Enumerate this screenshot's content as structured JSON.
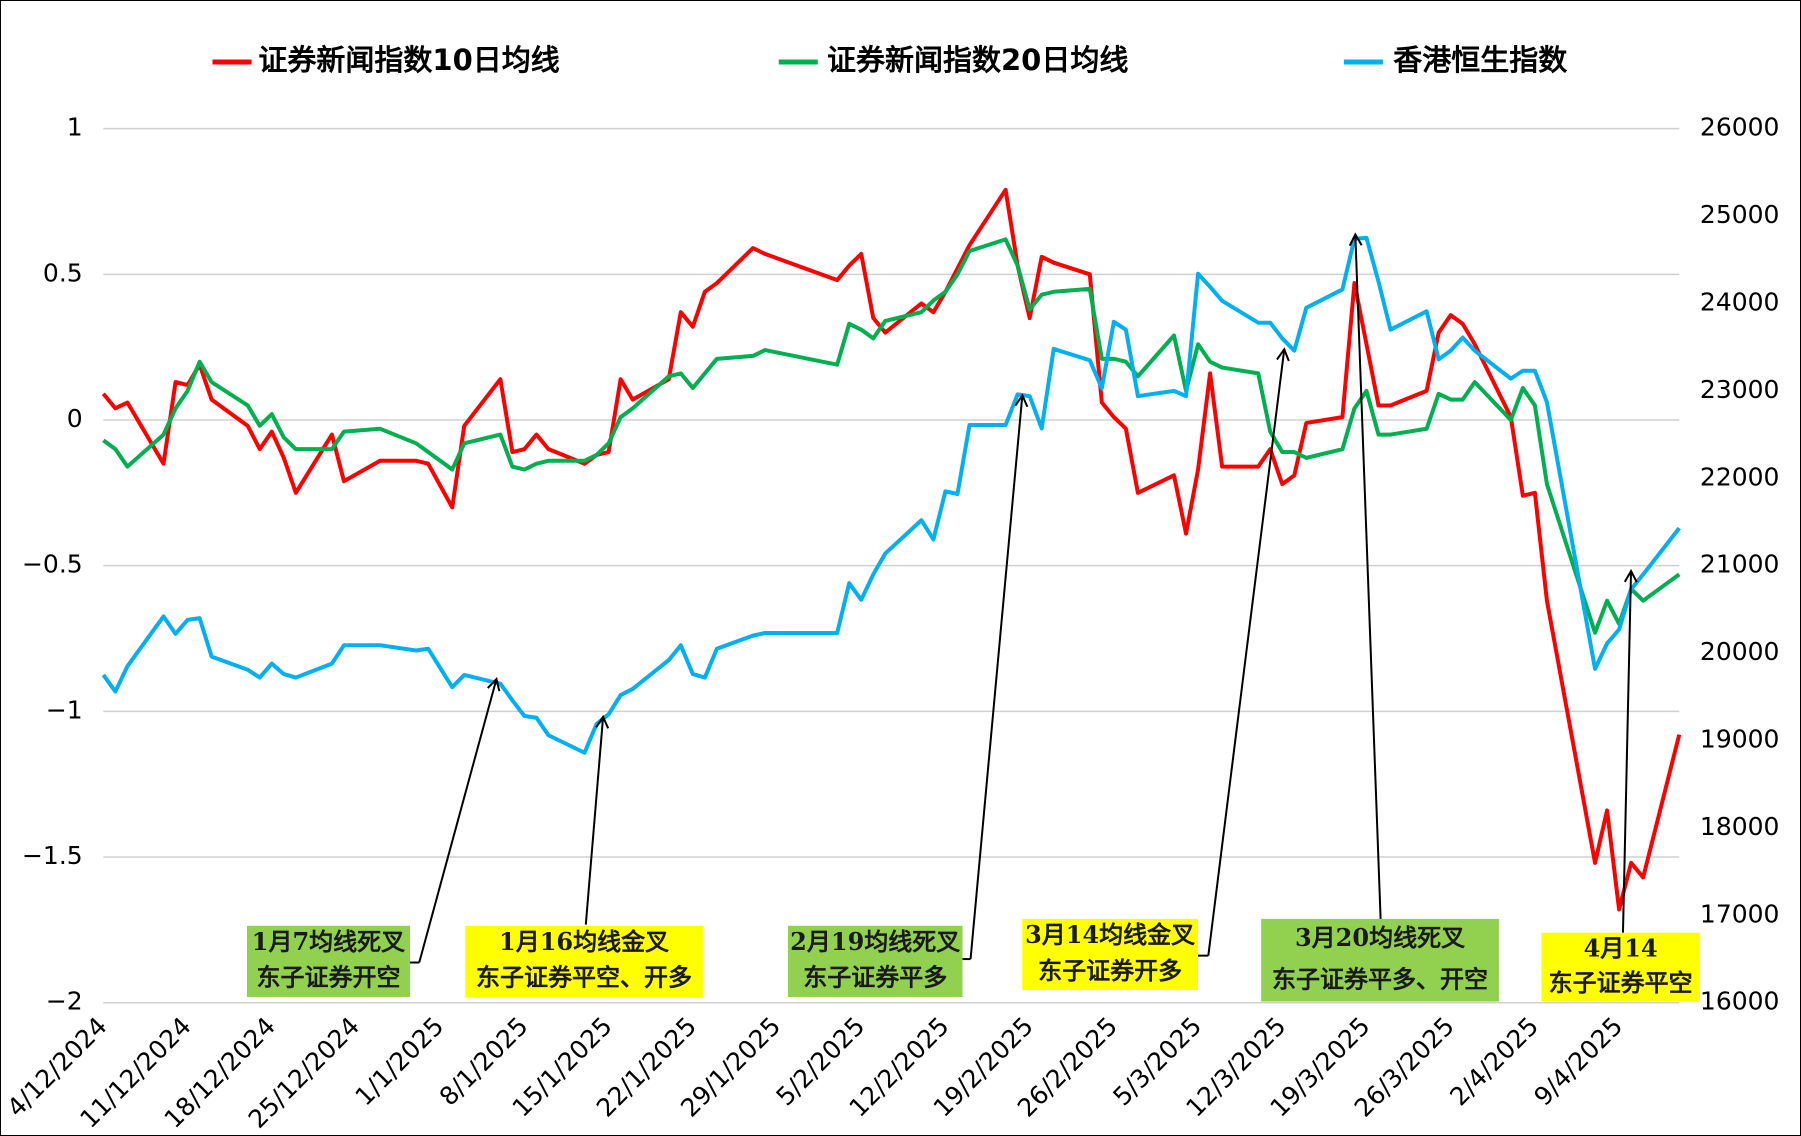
{
  "chart_data": {
    "type": "line",
    "x": [
      "4/12/2024",
      "5/12/2024",
      "6/12/2024",
      "9/12/2024",
      "10/12/2024",
      "11/12/2024",
      "12/12/2024",
      "13/12/2024",
      "16/12/2024",
      "17/12/2024",
      "18/12/2024",
      "19/12/2024",
      "20/12/2024",
      "23/12/2024",
      "24/12/2024",
      "27/12/2024",
      "30/12/2024",
      "31/12/2024",
      "2/1/2025",
      "3/1/2025",
      "6/1/2025",
      "7/1/2025",
      "8/1/2025",
      "9/1/2025",
      "10/1/2025",
      "13/1/2025",
      "14/1/2025",
      "15/1/2025",
      "16/1/2025",
      "17/1/2025",
      "20/1/2025",
      "21/1/2025",
      "22/1/2025",
      "23/1/2025",
      "24/1/2025",
      "27/1/2025",
      "28/1/2025",
      "3/2/2025",
      "4/2/2025",
      "5/2/2025",
      "6/2/2025",
      "7/2/2025",
      "10/2/2025",
      "11/2/2025",
      "12/2/2025",
      "13/2/2025",
      "14/2/2025",
      "17/2/2025",
      "18/2/2025",
      "19/2/2025",
      "20/2/2025",
      "21/2/2025",
      "24/2/2025",
      "25/2/2025",
      "26/2/2025",
      "27/2/2025",
      "28/2/2025",
      "3/3/2025",
      "4/3/2025",
      "5/3/2025",
      "6/3/2025",
      "7/3/2025",
      "10/3/2025",
      "11/3/2025",
      "12/3/2025",
      "13/3/2025",
      "14/3/2025",
      "17/3/2025",
      "18/3/2025",
      "19/3/2025",
      "20/3/2025",
      "21/3/2025",
      "24/3/2025",
      "25/3/2025",
      "26/3/2025",
      "27/3/2025",
      "28/3/2025",
      "31/3/2025",
      "1/4/2025",
      "2/4/2025",
      "3/4/2025",
      "7/4/2025",
      "8/4/2025",
      "9/4/2025",
      "10/4/2025",
      "11/4/2025",
      "14/4/2025"
    ],
    "series": [
      {
        "name": "证券新闻指数10日均线",
        "color": "#ff0000",
        "axis": "y",
        "values": [
          0.09,
          0.04,
          0.06,
          -0.15,
          0.13,
          0.12,
          0.19,
          0.07,
          -0.02,
          -0.1,
          -0.04,
          -0.13,
          -0.25,
          -0.05,
          -0.21,
          -0.14,
          -0.14,
          -0.15,
          -0.3,
          -0.02,
          0.14,
          -0.11,
          -0.1,
          -0.05,
          -0.1,
          -0.15,
          -0.12,
          -0.11,
          0.14,
          0.07,
          0.14,
          0.37,
          0.32,
          0.44,
          0.47,
          0.59,
          0.57,
          0.48,
          0.53,
          0.57,
          0.35,
          0.3,
          0.4,
          0.37,
          0.44,
          0.52,
          0.6,
          0.79,
          0.53,
          0.35,
          0.56,
          0.54,
          0.5,
          0.06,
          0.01,
          -0.03,
          -0.25,
          -0.19,
          -0.39,
          -0.17,
          0.16,
          -0.16,
          -0.16,
          -0.1,
          -0.22,
          -0.19,
          -0.01,
          0.01,
          0.47,
          0.26,
          0.05,
          0.05,
          0.1,
          0.3,
          0.36,
          0.33,
          0.26,
          0.01,
          -0.26,
          -0.25,
          -0.62,
          -1.52,
          -1.34,
          -1.68,
          -1.52,
          -1.57,
          -1.08
        ]
      },
      {
        "name": "证券新闻指数20日均线",
        "color": "#00b050",
        "axis": "y",
        "values": [
          -0.07,
          -0.1,
          -0.16,
          -0.05,
          0.04,
          0.1,
          0.2,
          0.13,
          0.05,
          -0.02,
          0.02,
          -0.06,
          -0.1,
          -0.1,
          -0.04,
          -0.03,
          -0.08,
          -0.11,
          -0.17,
          -0.08,
          -0.05,
          -0.16,
          -0.17,
          -0.15,
          -0.14,
          -0.14,
          -0.12,
          -0.08,
          0.01,
          0.04,
          0.15,
          0.16,
          0.11,
          0.16,
          0.21,
          0.22,
          0.24,
          0.19,
          0.33,
          0.31,
          0.28,
          0.34,
          0.37,
          0.41,
          0.44,
          0.5,
          0.58,
          0.62,
          0.53,
          0.38,
          0.43,
          0.44,
          0.45,
          0.21,
          0.21,
          0.2,
          0.15,
          0.29,
          0.1,
          0.26,
          0.2,
          0.18,
          0.16,
          -0.04,
          -0.11,
          -0.11,
          -0.13,
          -0.1,
          0.04,
          0.1,
          -0.05,
          -0.05,
          -0.03,
          0.09,
          0.07,
          0.07,
          0.13,
          0.0,
          0.11,
          0.05,
          -0.22,
          -0.73,
          -0.62,
          -0.7,
          -0.58,
          -0.62,
          -0.53
        ]
      },
      {
        "name": "香港恒生指数",
        "color": "#00b0f0",
        "axis": "y2",
        "values": [
          19750,
          19560,
          19850,
          20420,
          20220,
          20380,
          20400,
          19960,
          19810,
          19720,
          19880,
          19760,
          19720,
          19880,
          20090,
          20090,
          20030,
          20050,
          19610,
          19750,
          19650,
          19460,
          19280,
          19260,
          19060,
          18860,
          19190,
          19300,
          19520,
          19590,
          19920,
          20090,
          19760,
          19720,
          20050,
          20200,
          20230,
          20230,
          20800,
          20610,
          20900,
          21140,
          21520,
          21300,
          21850,
          21820,
          22610,
          22610,
          22960,
          22940,
          22570,
          23480,
          23350,
          23030,
          23790,
          23700,
          22940,
          23000,
          22940,
          24340,
          24190,
          24030,
          23780,
          23780,
          23600,
          23460,
          23950,
          24160,
          24740,
          24750,
          24250,
          23700,
          23910,
          23360,
          23460,
          23610,
          23460,
          23140,
          23230,
          23230,
          22870,
          19820,
          20110,
          20270,
          20730,
          20900,
          21430
        ]
      }
    ],
    "xlim": [
      "4/12/2024",
      "14/4/2025"
    ],
    "xticks": [
      "4/12/2024",
      "11/12/2024",
      "18/12/2024",
      "25/12/2024",
      "1/1/2025",
      "8/1/2025",
      "15/1/2025",
      "22/1/2025",
      "29/1/2025",
      "5/2/2025",
      "12/2/2025",
      "19/2/2025",
      "26/2/2025",
      "5/3/2025",
      "12/3/2025",
      "19/3/2025",
      "26/3/2025",
      "2/4/2025",
      "9/4/2025"
    ],
    "ylim": [
      -2,
      1
    ],
    "yticks": [
      {
        "value": -2,
        "label": "−2"
      },
      {
        "value": -1.5,
        "label": "−1.5"
      },
      {
        "value": -1,
        "label": "−1"
      },
      {
        "value": -0.5,
        "label": "−0.5"
      },
      0,
      0.5,
      1
    ],
    "y2lim": [
      16000,
      26000
    ],
    "y2ticks": [
      16000,
      17000,
      18000,
      19000,
      20000,
      21000,
      22000,
      23000,
      24000,
      25000,
      26000
    ],
    "grid": true,
    "legend": "top",
    "annotations": [
      {
        "lines": [
          "1月7均线死叉",
          "东子证券开空"
        ],
        "color": "#92d050"
      },
      {
        "lines": [
          "1月16均线金叉",
          "东子证券平空、开多"
        ],
        "color": "#ffff00"
      },
      {
        "lines": [
          "2月19均线死叉",
          "东子证券平多"
        ],
        "color": "#92d050"
      },
      {
        "lines": [
          "3月14均线金叉",
          "东子证券开多"
        ],
        "color": "#ffff00"
      },
      {
        "lines": [
          "3月20均线死叉",
          "东子证券平多、开空"
        ],
        "color": "#92d050"
      },
      {
        "lines": [
          "4月14",
          "东子证券平空"
        ],
        "color": "#ffff00"
      }
    ]
  }
}
